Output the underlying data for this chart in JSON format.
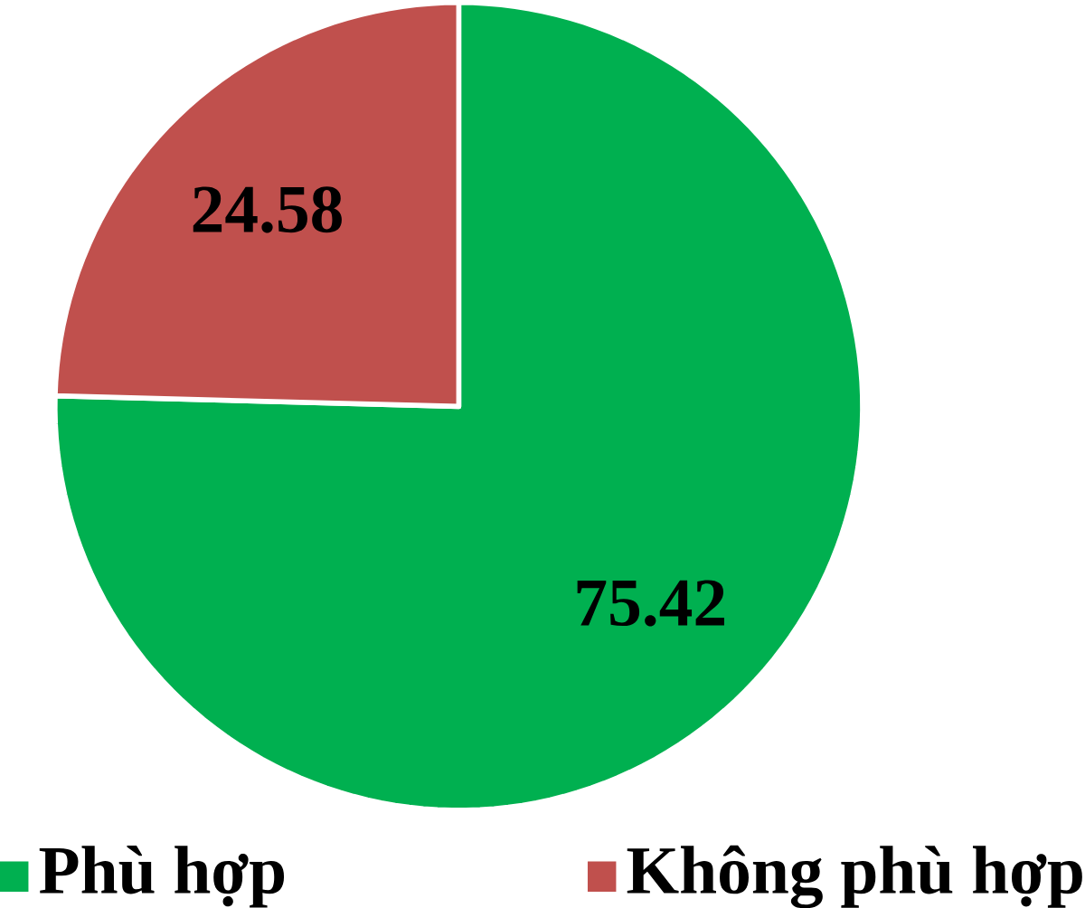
{
  "chart_data": {
    "type": "pie",
    "categories": [
      "Phù hợp",
      "Không phù hợp"
    ],
    "values": [
      75.42,
      24.58
    ],
    "colors": [
      "#00b050",
      "#c0504d"
    ],
    "data_labels": true,
    "legend": "bottom"
  }
}
